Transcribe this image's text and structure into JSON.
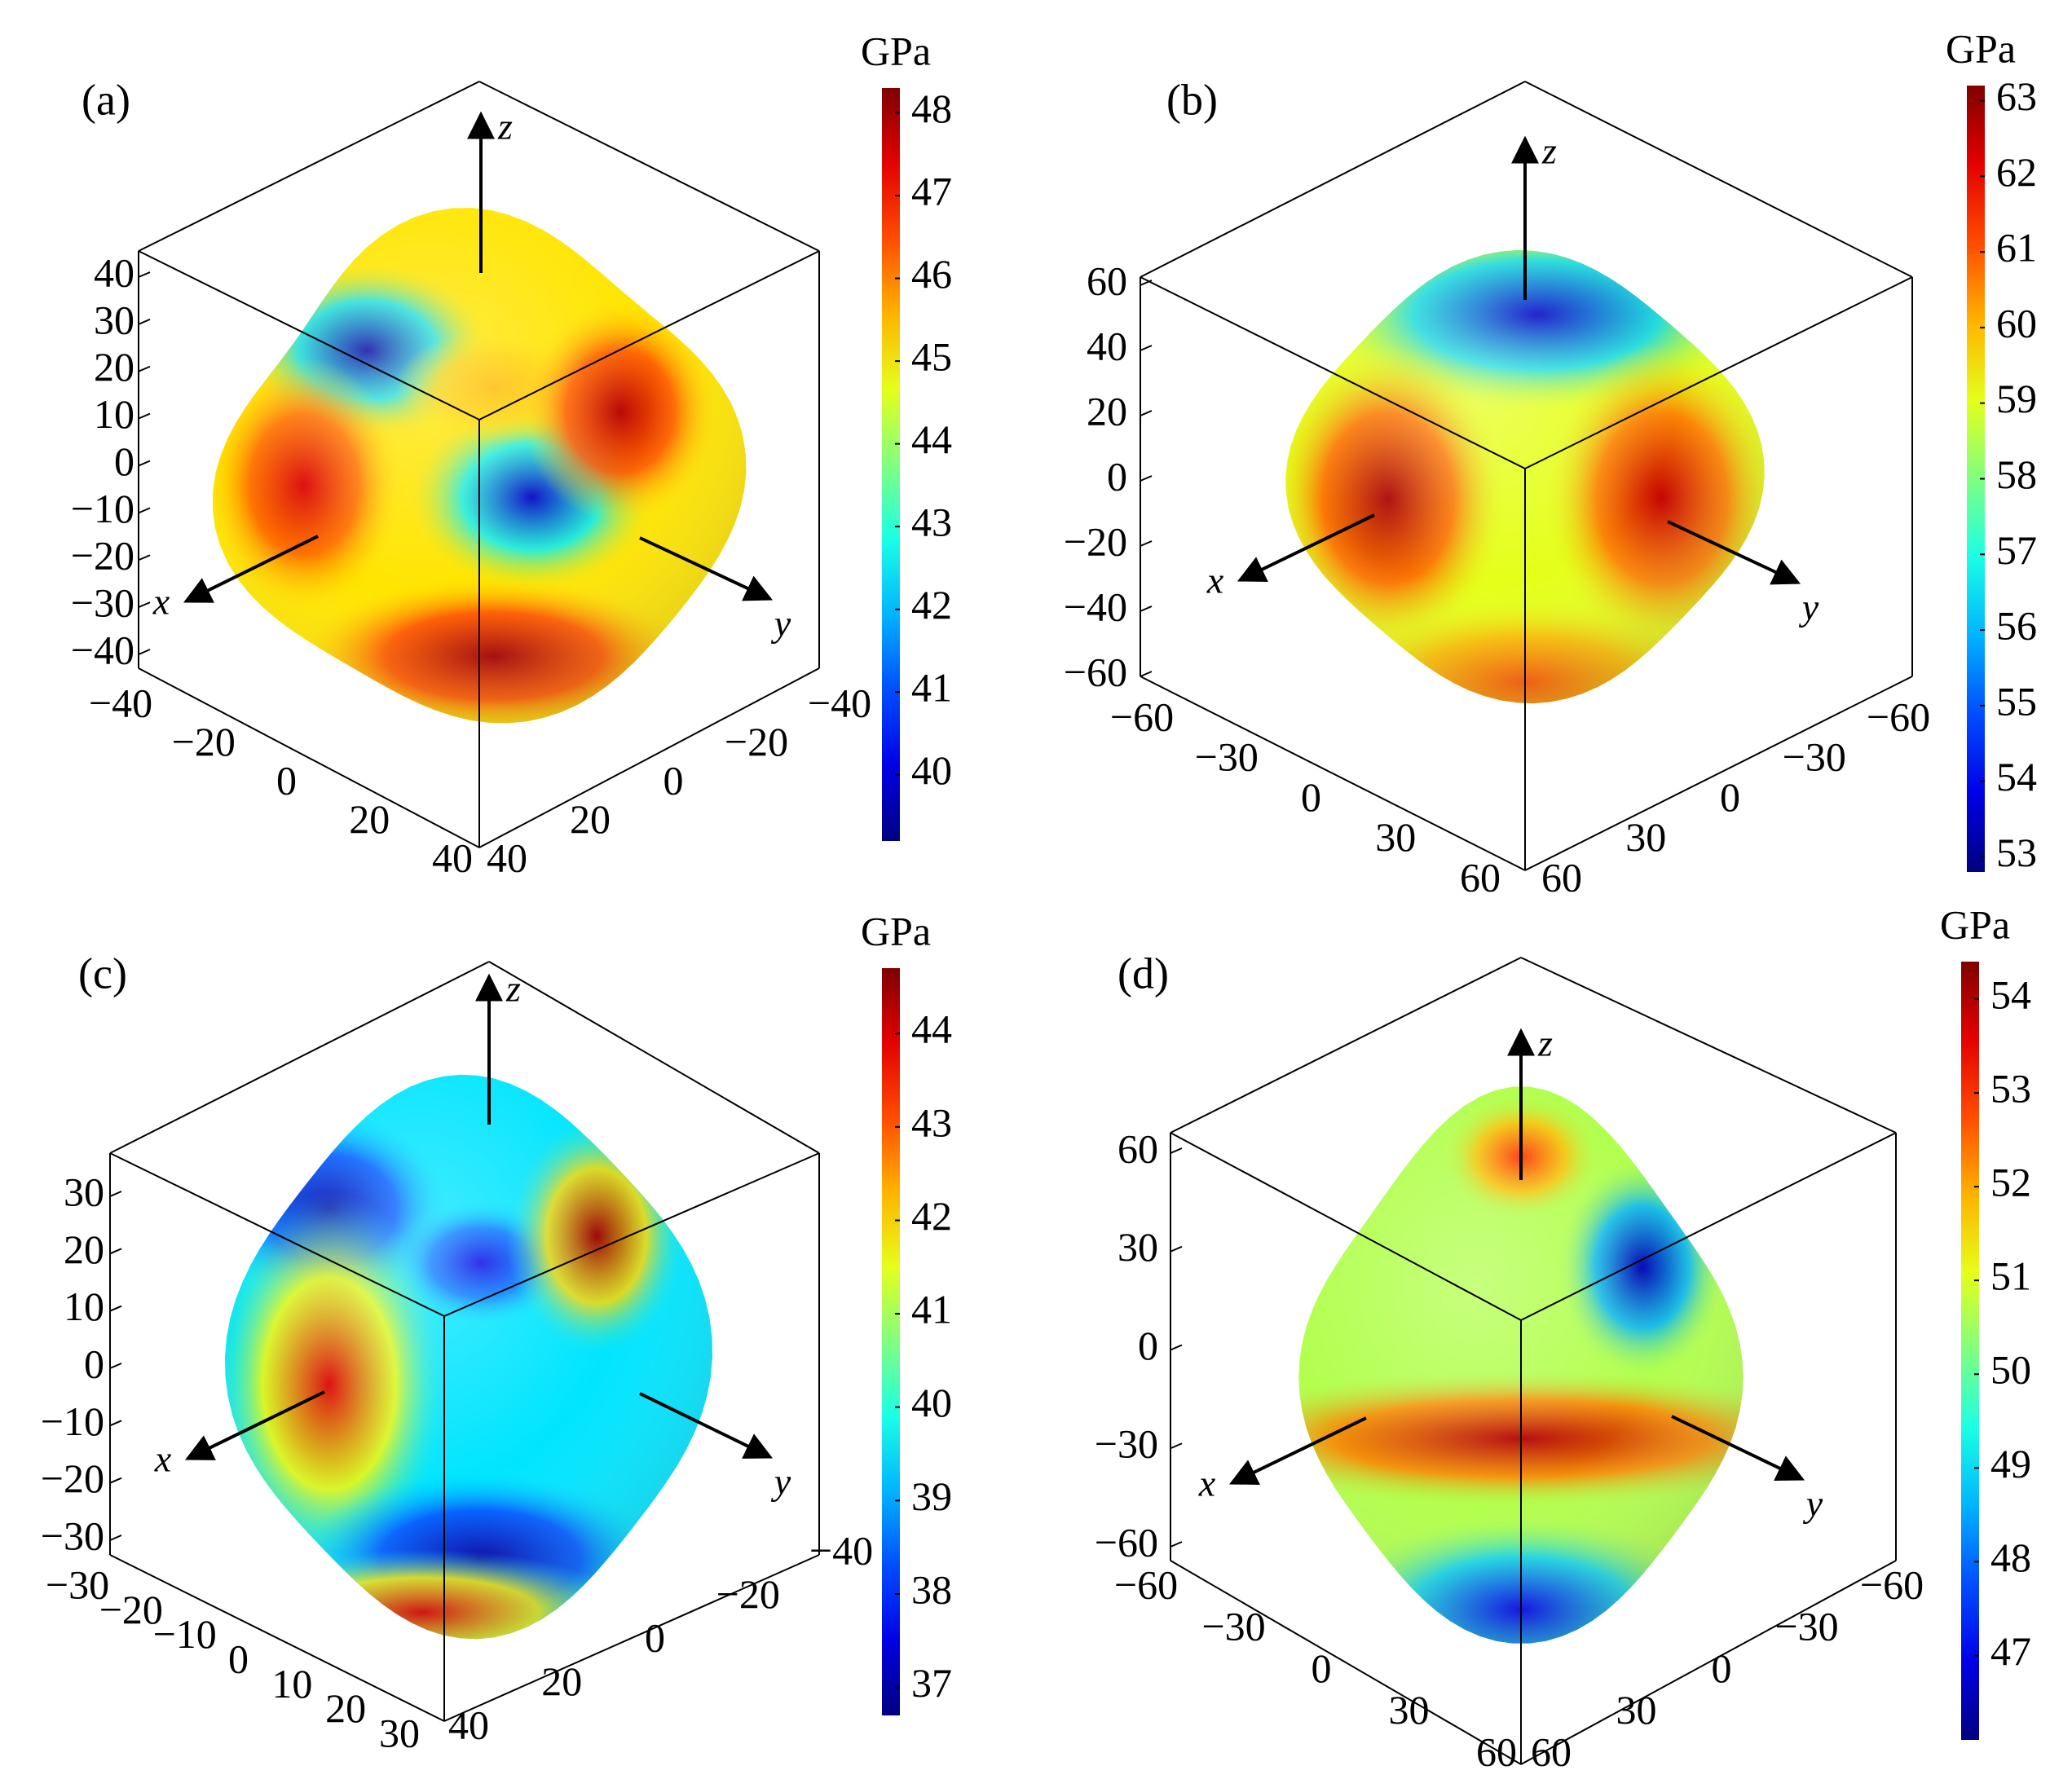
{
  "chart_data": [
    {
      "panel_label": "(a)",
      "type": "surface3d",
      "colorbar": {
        "unit": "GPa",
        "ticks": [
          40,
          41,
          42,
          43,
          44,
          45,
          46,
          47,
          48
        ],
        "range": [
          39.2,
          48.3
        ]
      },
      "axes": {
        "z_ticks": [
          "40",
          "30",
          "20",
          "10",
          "0",
          "−10",
          "−20",
          "−30",
          "−40"
        ],
        "x_ticks": [
          "−40",
          "−20",
          "0",
          "20",
          "40"
        ],
        "y_ticks": [
          "−40",
          "−20",
          "0",
          "20",
          "40"
        ],
        "arrow_labels": {
          "x": "x",
          "y": "y",
          "z": "z"
        }
      },
      "surface_shape": "lobed",
      "color_hotspots": [
        {
          "region": "upper-left face",
          "value": 39.5
        },
        {
          "region": "front-right face",
          "value": 39.8
        },
        {
          "region": "top center",
          "value": 45.5
        },
        {
          "region": "right lobe",
          "value": 47.8
        },
        {
          "region": "bottom front",
          "value": 48.0
        },
        {
          "region": "left lobe",
          "value": 47.5
        }
      ]
    },
    {
      "panel_label": "(b)",
      "type": "surface3d",
      "colorbar": {
        "unit": "GPa",
        "ticks": [
          53,
          54,
          55,
          56,
          57,
          58,
          59,
          60,
          61,
          62,
          63
        ],
        "range": [
          52.8,
          63.2
        ]
      },
      "axes": {
        "z_ticks": [
          "60",
          "40",
          "20",
          "0",
          "−20",
          "−40",
          "−60"
        ],
        "x_ticks": [
          "−60",
          "−30",
          "0",
          "30",
          "60"
        ],
        "y_ticks": [
          "−60",
          "−30",
          "0",
          "30",
          "60"
        ],
        "arrow_labels": {
          "x": "x",
          "y": "y",
          "z": "z"
        }
      },
      "surface_shape": "rounded-cube",
      "color_hotspots": [
        {
          "region": "top cap",
          "value": 53.5
        },
        {
          "region": "left side",
          "value": 62.8
        },
        {
          "region": "right side",
          "value": 62.5
        },
        {
          "region": "bottom",
          "value": 61.0
        }
      ]
    },
    {
      "panel_label": "(c)",
      "type": "surface3d",
      "colorbar": {
        "unit": "GPa",
        "ticks": [
          37,
          38,
          39,
          40,
          41,
          42,
          43,
          44
        ],
        "range": [
          36.7,
          44.7
        ]
      },
      "axes": {
        "z_ticks": [
          "30",
          "20",
          "10",
          "0",
          "−10",
          "−20",
          "−30"
        ],
        "x_ticks": [
          "−30",
          "−20",
          "−10",
          "0",
          "10",
          "20",
          "30"
        ],
        "y_ticks": [
          "−40",
          "−20",
          "0",
          "20",
          "40"
        ],
        "arrow_labels": {
          "x": "x",
          "y": "y",
          "z": "z"
        }
      },
      "surface_shape": "rounded-cube",
      "color_hotspots": [
        {
          "region": "upper-left",
          "value": 37.0
        },
        {
          "region": "top center",
          "value": 37.5
        },
        {
          "region": "upper-right",
          "value": 44.5
        },
        {
          "region": "left side",
          "value": 44.0
        },
        {
          "region": "bottom front",
          "value": 37.0
        },
        {
          "region": "bottom rim",
          "value": 44.0
        }
      ]
    },
    {
      "panel_label": "(d)",
      "type": "surface3d",
      "colorbar": {
        "unit": "GPa",
        "ticks": [
          47,
          48,
          49,
          50,
          51,
          52,
          53,
          54
        ],
        "range": [
          46.1,
          54.4
        ]
      },
      "axes": {
        "z_ticks": [
          "60",
          "30",
          "0",
          "−30",
          "−60"
        ],
        "x_ticks": [
          "−60",
          "−30",
          "0",
          "30",
          "60"
        ],
        "y_ticks": [
          "−60",
          "−30",
          "0",
          "30",
          "60"
        ],
        "arrow_labels": {
          "x": "x",
          "y": "y",
          "z": "z"
        }
      },
      "surface_shape": "peaked-sphere",
      "color_hotspots": [
        {
          "region": "top peak",
          "value": 53.0
        },
        {
          "region": "upper-right",
          "value": 46.5
        },
        {
          "region": "equator band",
          "value": 54.0
        },
        {
          "region": "bottom",
          "value": 47.0
        }
      ]
    }
  ]
}
